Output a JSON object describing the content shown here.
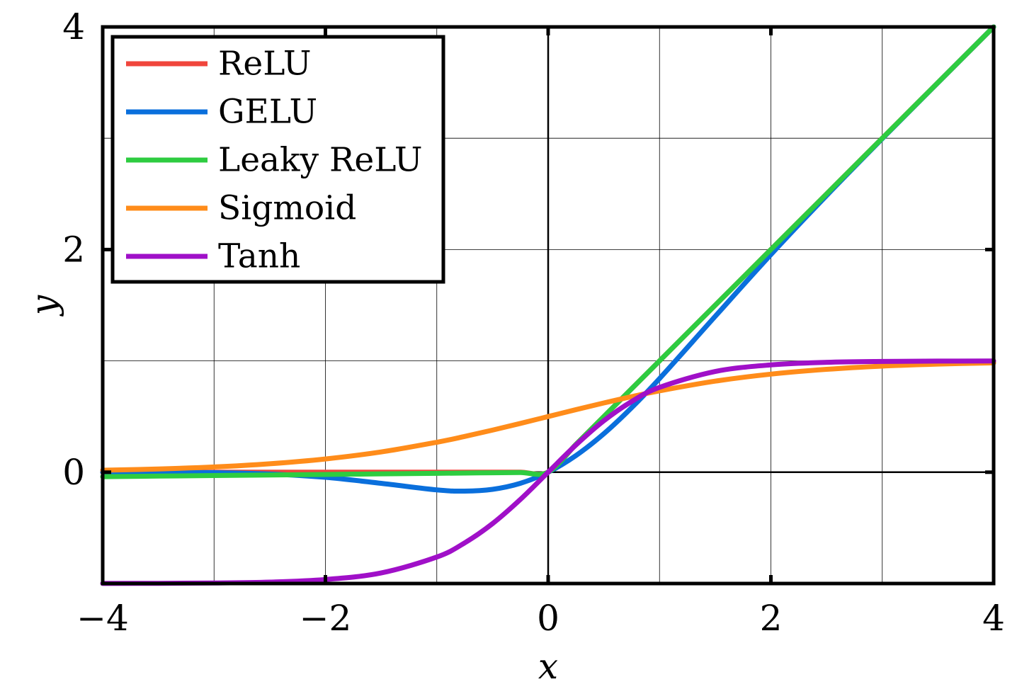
{
  "chart_data": {
    "type": "line",
    "title": "",
    "xlabel": "x",
    "ylabel": "y",
    "xlim": [
      -4,
      4
    ],
    "ylim": [
      -1,
      4
    ],
    "xticks": [
      -4,
      -2,
      0,
      2,
      4
    ],
    "yticks": [
      0,
      2,
      4
    ],
    "x_tick_labels": [
      "−4",
      "−2",
      "0",
      "2",
      "4"
    ],
    "y_tick_labels": [
      "0",
      "2",
      "4"
    ],
    "grid": true,
    "legend_position": "top-left",
    "x": [
      -4,
      -3.5,
      -3,
      -2.5,
      -2,
      -1.5,
      -1,
      -0.75,
      -0.5,
      -0.25,
      0,
      0.25,
      0.5,
      0.75,
      1,
      1.5,
      2,
      2.5,
      3,
      3.5,
      4
    ],
    "series": [
      {
        "name": "ReLU",
        "color": "#f0463c",
        "values": [
          0,
          0,
          0,
          0,
          0,
          0,
          0,
          0,
          0,
          0,
          0,
          0.25,
          0.5,
          0.75,
          1,
          1.5,
          2,
          2.5,
          3,
          3.5,
          4
        ]
      },
      {
        "name": "GELU",
        "color": "#0a6fdc",
        "values": [
          -0.0001,
          -0.0008,
          -0.004,
          -0.016,
          -0.046,
          -0.1,
          -0.159,
          -0.17,
          -0.154,
          -0.1,
          0,
          0.15,
          0.346,
          0.58,
          0.841,
          1.4,
          1.955,
          2.485,
          2.996,
          3.499,
          4
        ]
      },
      {
        "name": "Leaky ReLU",
        "color": "#2ecc40",
        "values": [
          -0.04,
          -0.035,
          -0.03,
          -0.025,
          -0.02,
          -0.015,
          -0.01,
          -0.0075,
          -0.005,
          -0.0025,
          0,
          0.25,
          0.5,
          0.75,
          1,
          1.5,
          2,
          2.5,
          3,
          3.5,
          4
        ]
      },
      {
        "name": "Sigmoid",
        "color": "#ff8c1a",
        "values": [
          0.018,
          0.029,
          0.047,
          0.076,
          0.119,
          0.182,
          0.269,
          0.321,
          0.378,
          0.438,
          0.5,
          0.562,
          0.622,
          0.679,
          0.731,
          0.818,
          0.881,
          0.924,
          0.953,
          0.971,
          0.982
        ]
      },
      {
        "name": "Tanh",
        "color": "#a010c8",
        "values": [
          -0.999,
          -0.998,
          -0.995,
          -0.987,
          -0.964,
          -0.905,
          -0.762,
          -0.635,
          -0.462,
          -0.245,
          0,
          0.245,
          0.462,
          0.635,
          0.762,
          0.905,
          0.964,
          0.987,
          0.995,
          0.998,
          0.999
        ]
      }
    ]
  }
}
